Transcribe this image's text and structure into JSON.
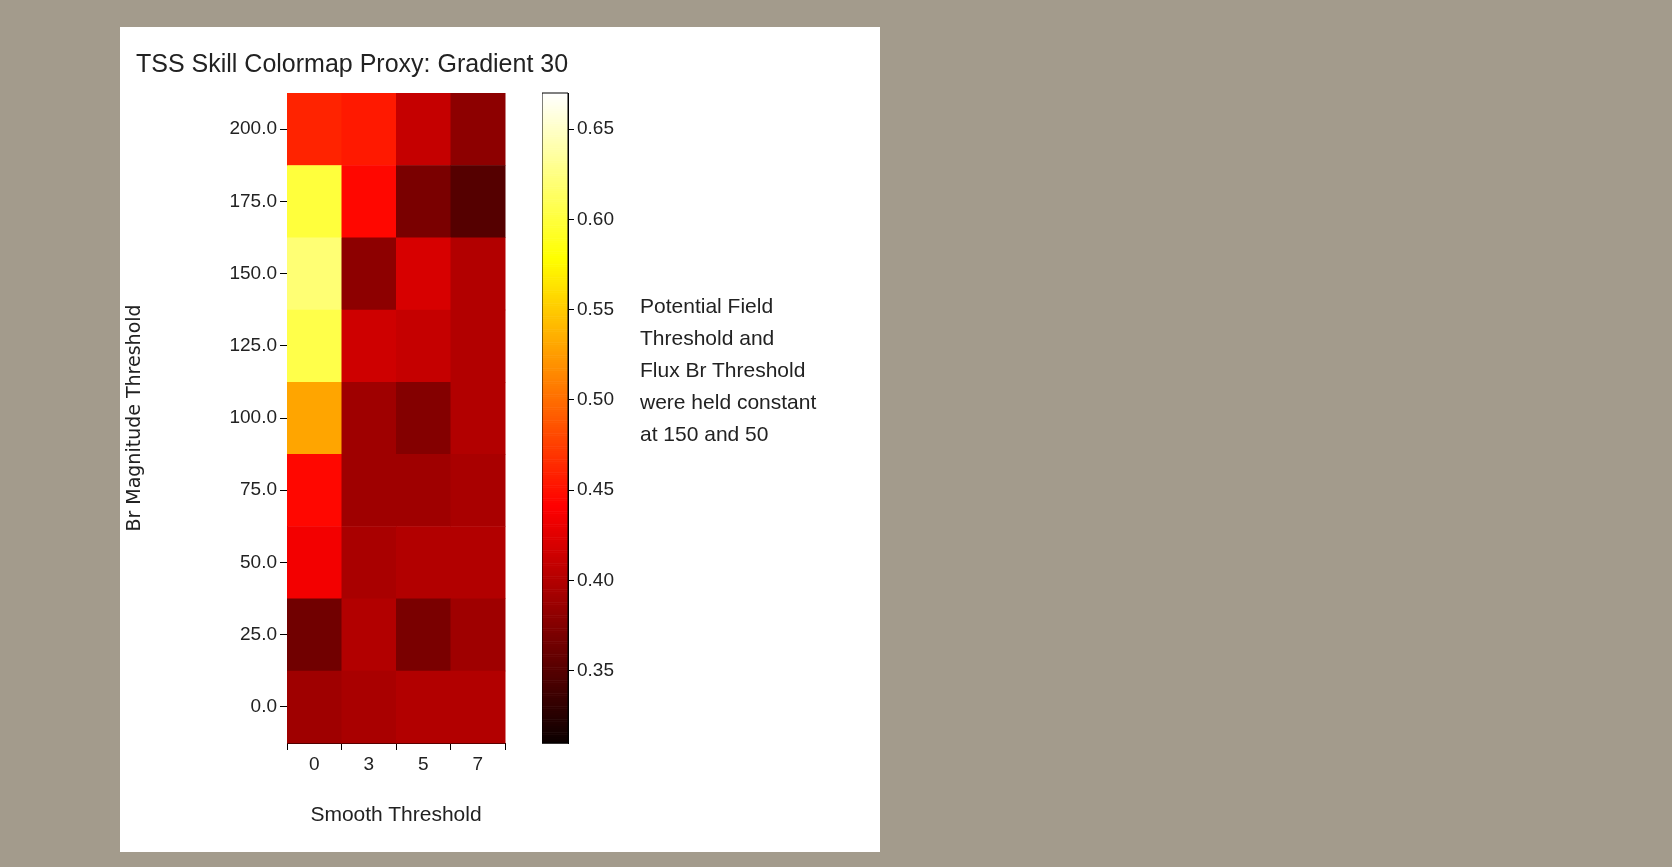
{
  "chart_data": {
    "type": "heatmap",
    "title": "TSS Skill Colormap Proxy: Gradient 30",
    "xlabel": "Smooth Threshold",
    "ylabel": "Br Magnitude Threshold",
    "categories": [
      "0",
      "3",
      "5",
      "7"
    ],
    "y_categories": [
      "200.0",
      "175.0",
      "150.0",
      "125.0",
      "100.0",
      "75.0",
      "50.0",
      "25.0",
      "0.0"
    ],
    "cells": [
      [
        0.46,
        0.455,
        0.41,
        0.38
      ],
      [
        0.6,
        0.445,
        0.37,
        0.35
      ],
      [
        0.62,
        0.38,
        0.42,
        0.4
      ],
      [
        0.605,
        0.415,
        0.41,
        0.4
      ],
      [
        0.53,
        0.39,
        0.375,
        0.4
      ],
      [
        0.445,
        0.39,
        0.39,
        0.395
      ],
      [
        0.435,
        0.395,
        0.4,
        0.4
      ],
      [
        0.365,
        0.4,
        0.37,
        0.39
      ],
      [
        0.39,
        0.395,
        0.4,
        0.4
      ]
    ],
    "clim": [
      0.31,
      0.67
    ],
    "cticks": [
      {
        "value": 0.35,
        "label": "0.35"
      },
      {
        "value": 0.4,
        "label": "0.40"
      },
      {
        "value": 0.45,
        "label": "0.45"
      },
      {
        "value": 0.5,
        "label": "0.50"
      },
      {
        "value": 0.55,
        "label": "0.55"
      },
      {
        "value": 0.6,
        "label": "0.60"
      },
      {
        "value": 0.65,
        "label": "0.65"
      }
    ],
    "annotations": [
      "Potential Field\nThreshold and\nFlux Br Threshold\nwere held constant\nat 150 and 50"
    ]
  }
}
